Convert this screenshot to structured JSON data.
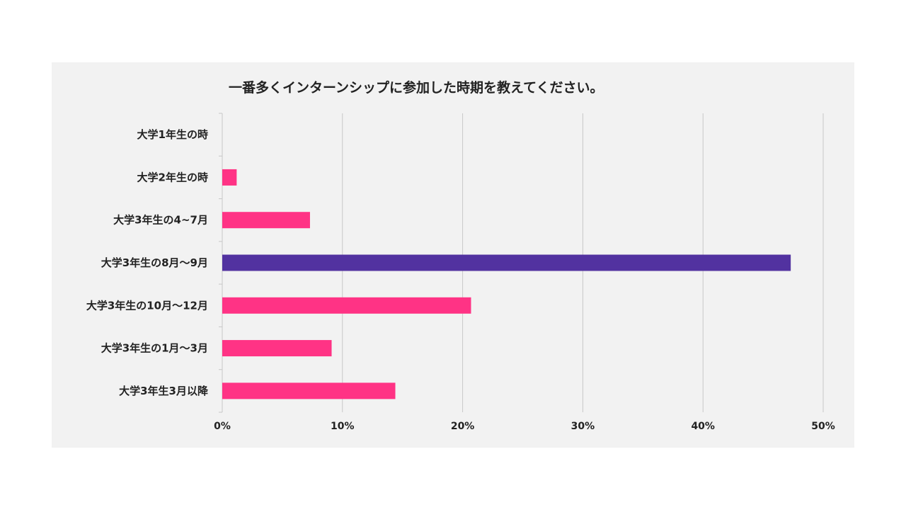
{
  "chart_data": {
    "type": "bar",
    "orientation": "horizontal",
    "title": "一番多くインターンシップに参加した時期を教えてください。",
    "categories": [
      "大学1年生の時",
      "大学2年生の時",
      "大学3年生の4~7月",
      "大学3年生の8月～9月",
      "大学3年生の10月～12月",
      "大学3年生の1月～3月",
      "大学3年生3月以降"
    ],
    "values": [
      0,
      1.2,
      7.3,
      47.3,
      20.7,
      9.1,
      14.4
    ],
    "value_unit": "%",
    "xlim": [
      0,
      50
    ],
    "x_ticks": [
      "0%",
      "10%",
      "20%",
      "30%",
      "40%",
      "50%"
    ],
    "x_tick_values": [
      0,
      10,
      20,
      30,
      40,
      50
    ],
    "grid": "vertical",
    "legend": "none",
    "colors": {
      "default_bar": "#ff3385",
      "highlight_bar": "#5232a0",
      "gridline": "#c8c8c8",
      "panel_background": "#f2f2f2"
    },
    "highlight_index": 3
  }
}
